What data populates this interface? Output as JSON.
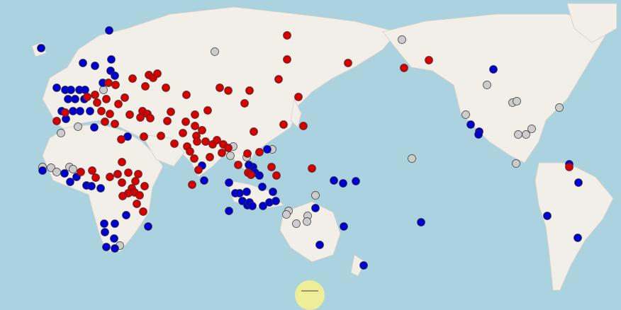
{
  "map": {
    "ocean_color": "#aad3df",
    "land_color": "#f2efe9",
    "marker_colors": {
      "red": "#d40000",
      "blue": "#0000cc",
      "gray": "#cccccc"
    }
  },
  "collapse_handle": {
    "icon": "minus-icon",
    "color": "#eeee99"
  }
}
